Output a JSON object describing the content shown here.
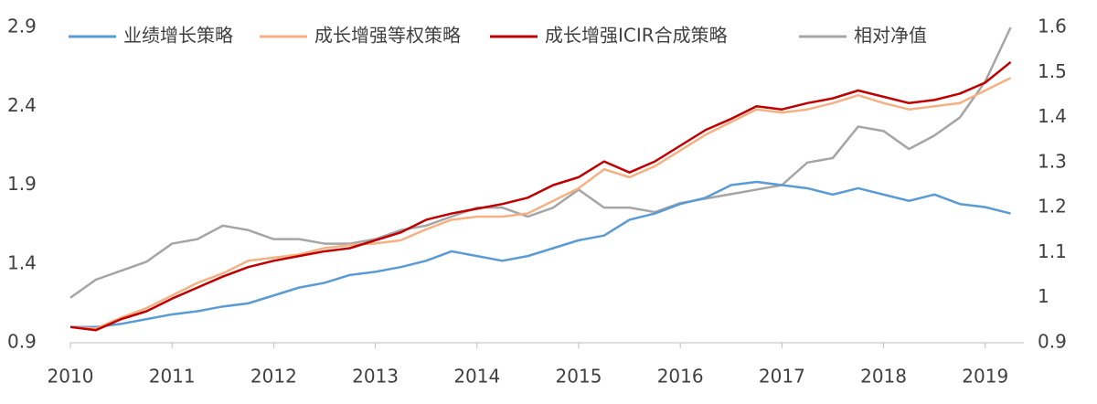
{
  "chart_data": {
    "type": "line",
    "x": [
      2010,
      2010.25,
      2010.5,
      2010.75,
      2011,
      2011.25,
      2011.5,
      2011.75,
      2012,
      2012.25,
      2012.5,
      2012.75,
      2013,
      2013.25,
      2013.5,
      2013.75,
      2014,
      2014.25,
      2014.5,
      2014.75,
      2015,
      2015.25,
      2015.5,
      2015.75,
      2016,
      2016.25,
      2016.5,
      2016.75,
      2017,
      2017.25,
      2017.5,
      2017.75,
      2018,
      2018.25,
      2018.5,
      2018.75,
      2019,
      2019.25
    ],
    "series": [
      {
        "name": "业绩增长策略",
        "color": "#5b9bd5",
        "values": [
          1.0,
          1.0,
          1.02,
          1.05,
          1.08,
          1.1,
          1.13,
          1.15,
          1.2,
          1.25,
          1.28,
          1.33,
          1.35,
          1.38,
          1.42,
          1.48,
          1.45,
          1.42,
          1.45,
          1.5,
          1.55,
          1.58,
          1.68,
          1.72,
          1.78,
          1.82,
          1.9,
          1.92,
          1.9,
          1.88,
          1.84,
          1.88,
          1.84,
          1.8,
          1.84,
          1.78,
          1.76,
          1.72
        ]
      },
      {
        "name": "成长增强等权策略",
        "color": "#f4b183",
        "values": [
          1.0,
          0.99,
          1.06,
          1.12,
          1.2,
          1.28,
          1.34,
          1.42,
          1.44,
          1.46,
          1.5,
          1.52,
          1.53,
          1.55,
          1.62,
          1.68,
          1.7,
          1.7,
          1.72,
          1.8,
          1.88,
          2.0,
          1.95,
          2.02,
          2.12,
          2.22,
          2.3,
          2.38,
          2.36,
          2.38,
          2.42,
          2.47,
          2.42,
          2.38,
          2.4,
          2.42,
          2.5,
          2.58
        ]
      },
      {
        "name": "成长增强ICIR合成策略",
        "color": "#c00000",
        "values": [
          1.0,
          0.98,
          1.05,
          1.1,
          1.18,
          1.25,
          1.32,
          1.38,
          1.42,
          1.45,
          1.48,
          1.5,
          1.55,
          1.6,
          1.68,
          1.72,
          1.75,
          1.78,
          1.82,
          1.9,
          1.95,
          2.05,
          1.98,
          2.05,
          2.15,
          2.25,
          2.32,
          2.4,
          2.38,
          2.42,
          2.45,
          2.5,
          2.46,
          2.42,
          2.44,
          2.48,
          2.55,
          2.68
        ]
      },
      {
        "name": "相对净值",
        "color": "#a5a5a5",
        "axis": "y2",
        "values": [
          1.0,
          1.04,
          1.06,
          1.08,
          1.12,
          1.13,
          1.16,
          1.15,
          1.13,
          1.13,
          1.12,
          1.12,
          1.13,
          1.15,
          1.16,
          1.18,
          1.2,
          1.2,
          1.18,
          1.2,
          1.24,
          1.2,
          1.2,
          1.19,
          1.21,
          1.22,
          1.23,
          1.24,
          1.25,
          1.3,
          1.31,
          1.38,
          1.37,
          1.33,
          1.36,
          1.4,
          1.48,
          1.6
        ]
      }
    ],
    "xlim": [
      2010,
      2019.38
    ],
    "xticks": [
      2010,
      2011,
      2012,
      2013,
      2014,
      2015,
      2016,
      2017,
      2018,
      2019
    ],
    "ylim": [
      0.9,
      2.9
    ],
    "yticks": [
      0.9,
      1.4,
      1.9,
      2.4,
      2.9
    ],
    "y2lim": [
      0.9,
      1.6
    ],
    "y2ticks": [
      0.9,
      1,
      1.1,
      1.2,
      1.3,
      1.4,
      1.5,
      1.6
    ],
    "legend": "top"
  }
}
